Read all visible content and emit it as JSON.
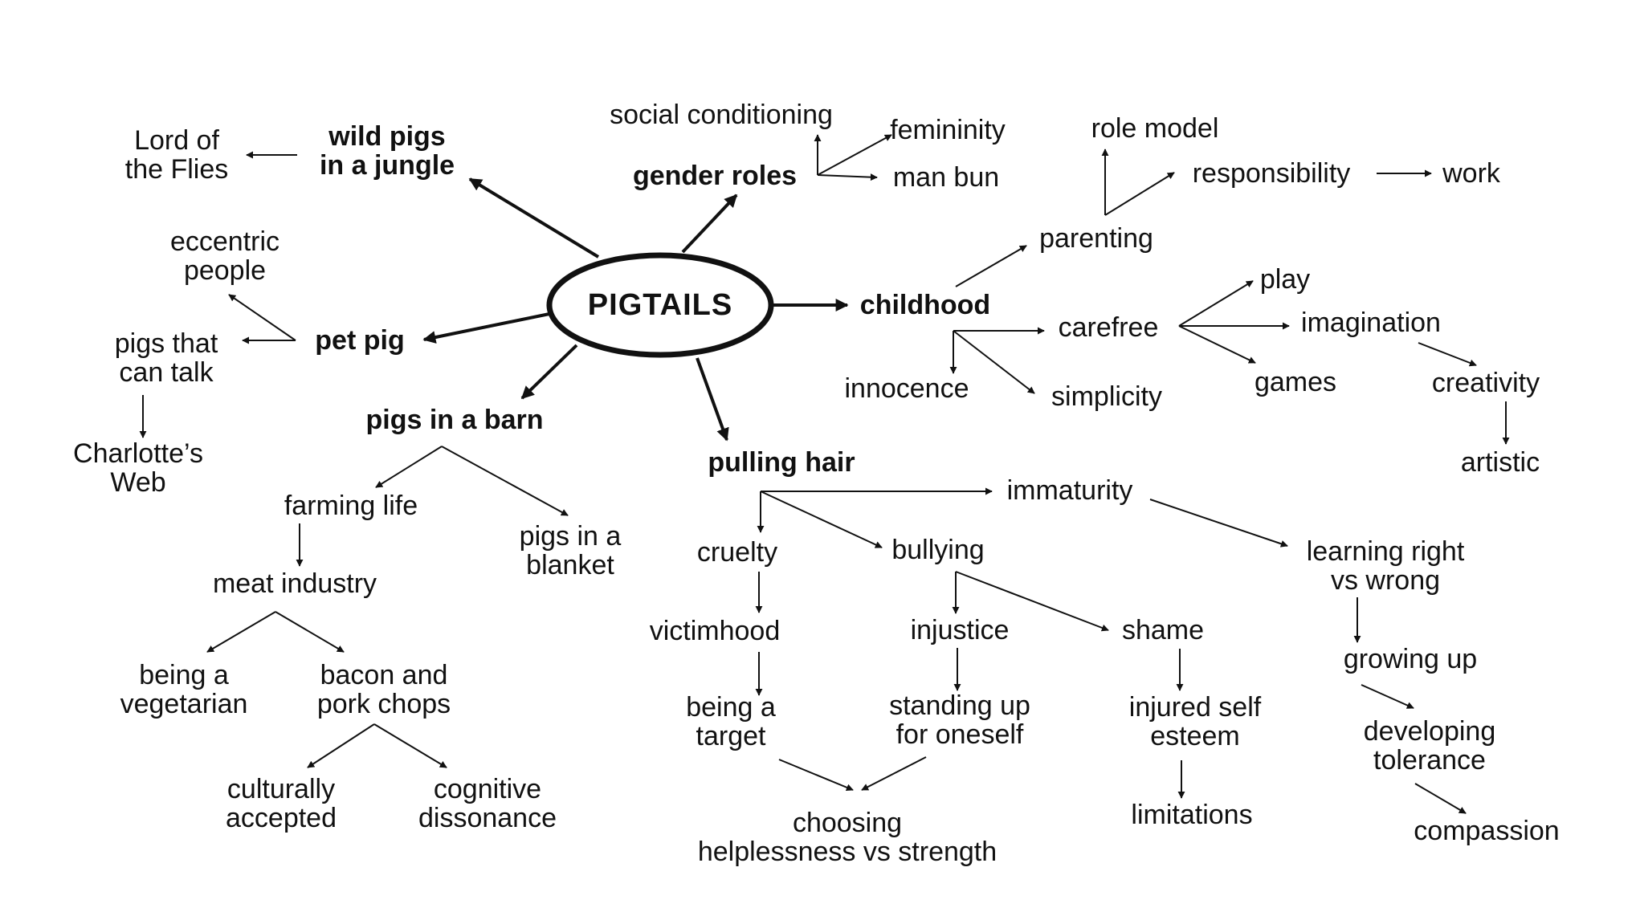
{
  "colors": {
    "ink": "#111111",
    "background": "#ffffff"
  },
  "center": "PIGTAILS",
  "main_topics": {
    "wild_pigs": "wild pigs\nin a jungle",
    "gender_roles": "gender roles",
    "childhood": "childhood",
    "pet_pig": "pet pig",
    "pigs_in_barn": "pigs in a barn",
    "pulling_hair": "pulling hair"
  },
  "subtopics": {
    "lord_of_flies": "Lord of\nthe Flies",
    "social_conditioning": "social conditioning",
    "femininity": "femininity",
    "man_bun": "man bun",
    "role_model": "role model",
    "responsibility": "responsibility",
    "work": "work",
    "parenting": "parenting",
    "play": "play",
    "carefree": "carefree",
    "imagination": "imagination",
    "games": "games",
    "creativity": "creativity",
    "artistic": "artistic",
    "innocence": "innocence",
    "simplicity": "simplicity",
    "eccentric_people": "eccentric\npeople",
    "pigs_that_talk": "pigs that\ncan talk",
    "charlottes_web": "Charlotte’s\nWeb",
    "farming_life": "farming life",
    "pigs_in_blanket": "pigs in a\nblanket",
    "meat_industry": "meat industry",
    "vegetarian": "being a\nvegetarian",
    "bacon": "bacon and\npork chops",
    "culturally_accepted": "culturally\naccepted",
    "cognitive_dissonance": "cognitive\ndissonance",
    "immaturity": "immaturity",
    "cruelty": "cruelty",
    "bullying": "bullying",
    "learning_right": "learning right\nvs wrong",
    "victimhood": "victimhood",
    "injustice": "injustice",
    "shame": "shame",
    "growing_up": "growing up",
    "being_target": "being a\ntarget",
    "standing_up": "standing up\nfor oneself",
    "injured_esteem": "injured self\nesteem",
    "developing_tolerance": "developing\ntolerance",
    "choosing": "choosing\nhelplessness vs strength",
    "limitations": "limitations",
    "compassion": "compassion"
  }
}
